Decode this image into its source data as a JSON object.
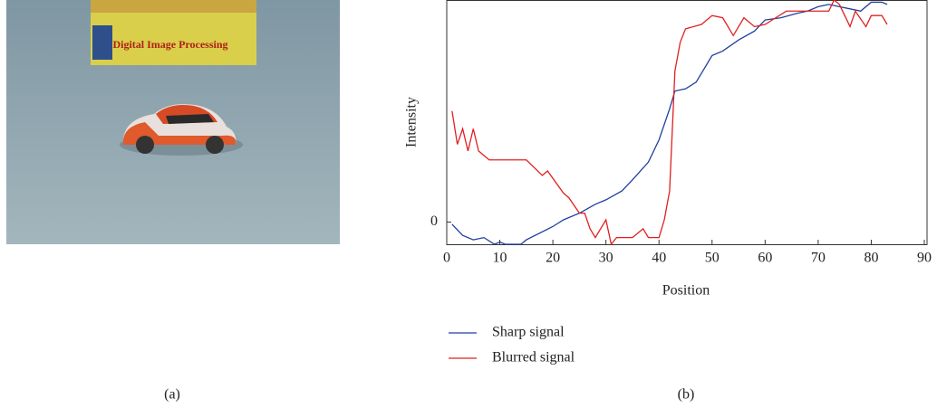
{
  "photo": {
    "book_title": "Digital Image Processing"
  },
  "panel_labels": [
    "(a)",
    "(b)"
  ],
  "chart_data": {
    "type": "line",
    "xlabel": "Position",
    "ylabel": "Intensity",
    "xlim": [
      0,
      90
    ],
    "xticks": [
      0,
      10,
      20,
      30,
      40,
      50,
      60,
      70,
      80,
      90
    ],
    "ylim": [
      -0.1,
      1.0
    ],
    "yticks": [
      0
    ],
    "legend": "below",
    "series": [
      {
        "name": "Sharp signal",
        "color": "#1f3f9f",
        "x": [
          1,
          3,
          5,
          7,
          9,
          10,
          11,
          14,
          15,
          20,
          22,
          25,
          28,
          30,
          33,
          35,
          38,
          40,
          42,
          43,
          45,
          47,
          50,
          52,
          55,
          58,
          60,
          63,
          66,
          68,
          70,
          72,
          74,
          76,
          78,
          80,
          82,
          83
        ],
        "values": [
          -0.01,
          -0.06,
          -0.08,
          -0.07,
          -0.1,
          -0.09,
          -0.1,
          -0.1,
          -0.08,
          -0.02,
          0.01,
          0.04,
          0.08,
          0.1,
          0.14,
          0.19,
          0.27,
          0.37,
          0.51,
          0.59,
          0.6,
          0.63,
          0.75,
          0.77,
          0.82,
          0.86,
          0.91,
          0.92,
          0.94,
          0.95,
          0.97,
          0.98,
          0.97,
          0.96,
          0.95,
          0.99,
          0.99,
          0.98
        ]
      },
      {
        "name": "Blurred signal",
        "color": "#e02020",
        "x": [
          1,
          2,
          3,
          4,
          5,
          6,
          8,
          15,
          18,
          19,
          22,
          23,
          25,
          26,
          27,
          28,
          30,
          31,
          32,
          35,
          37,
          38,
          40,
          41,
          42,
          43,
          44,
          45,
          48,
          50,
          52,
          54,
          56,
          58,
          60,
          62,
          64,
          70,
          72,
          73,
          74,
          76,
          77,
          79,
          80,
          82,
          83
        ],
        "values": [
          0.5,
          0.35,
          0.42,
          0.32,
          0.42,
          0.32,
          0.28,
          0.28,
          0.21,
          0.23,
          0.13,
          0.11,
          0.04,
          0.04,
          -0.03,
          -0.07,
          0.01,
          -0.1,
          -0.07,
          -0.07,
          -0.03,
          -0.07,
          -0.07,
          0.01,
          0.14,
          0.68,
          0.81,
          0.87,
          0.89,
          0.93,
          0.92,
          0.84,
          0.92,
          0.88,
          0.89,
          0.92,
          0.95,
          0.95,
          0.95,
          1.0,
          0.98,
          0.88,
          0.95,
          0.88,
          0.93,
          0.93,
          0.89
        ]
      }
    ]
  }
}
